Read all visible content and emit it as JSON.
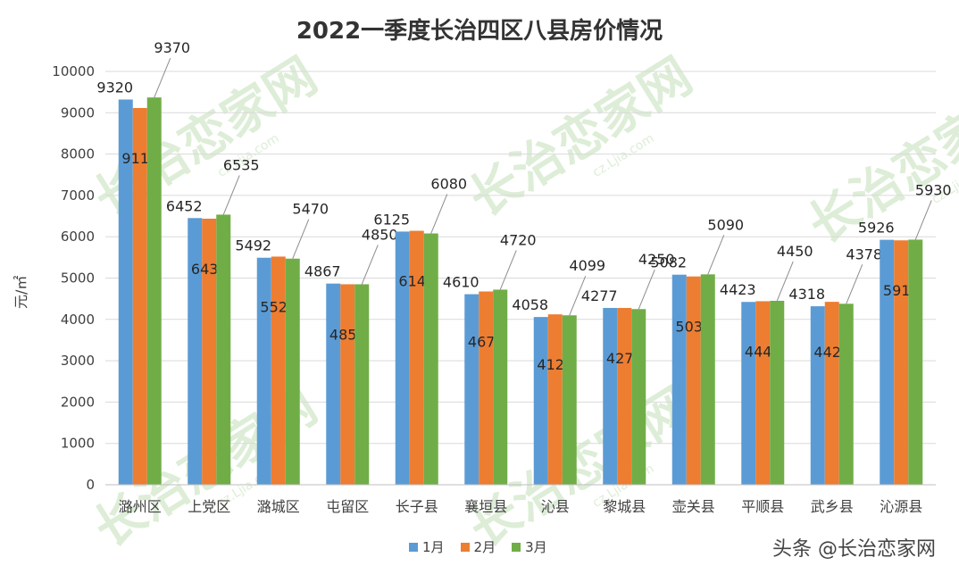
{
  "chart_data": {
    "type": "bar",
    "title": "2022一季度长治四区八县房价情况",
    "ylabel": "元/㎡",
    "xlabel": "",
    "ylim": [
      0,
      10000
    ],
    "yticks": [
      0,
      1000,
      2000,
      3000,
      4000,
      5000,
      6000,
      7000,
      8000,
      9000,
      10000
    ],
    "grid": true,
    "legend_position": "bottom",
    "categories": [
      "潞州区",
      "上党区",
      "潞城区",
      "屯留区",
      "长子县",
      "襄垣县",
      "沁县",
      "黎城县",
      "壶关县",
      "平顺县",
      "武乡县",
      "沁源县"
    ],
    "series": [
      {
        "name": "1月",
        "color": "#5B9BD5",
        "values": [
          9320,
          6452,
          5492,
          4867,
          6125,
          4610,
          4058,
          4277,
          5082,
          4423,
          4318,
          5926
        ]
      },
      {
        "name": "2月",
        "color": "#ED7D31",
        "values": [
          9115,
          6437,
          5520,
          4850,
          6144,
          4676,
          4122,
          4277,
          5039,
          4440,
          4425,
          5913
        ]
      },
      {
        "name": "3月",
        "color": "#70AD47",
        "values": [
          9370,
          6535,
          5470,
          4850,
          6080,
          4720,
          4099,
          4250,
          5090,
          4450,
          4378,
          5930
        ]
      }
    ]
  },
  "watermark": {
    "credit": "头条 @长治恋家网",
    "logo_text": "长治恋家网",
    "logo_url_text": "cz.Ljia.com"
  }
}
